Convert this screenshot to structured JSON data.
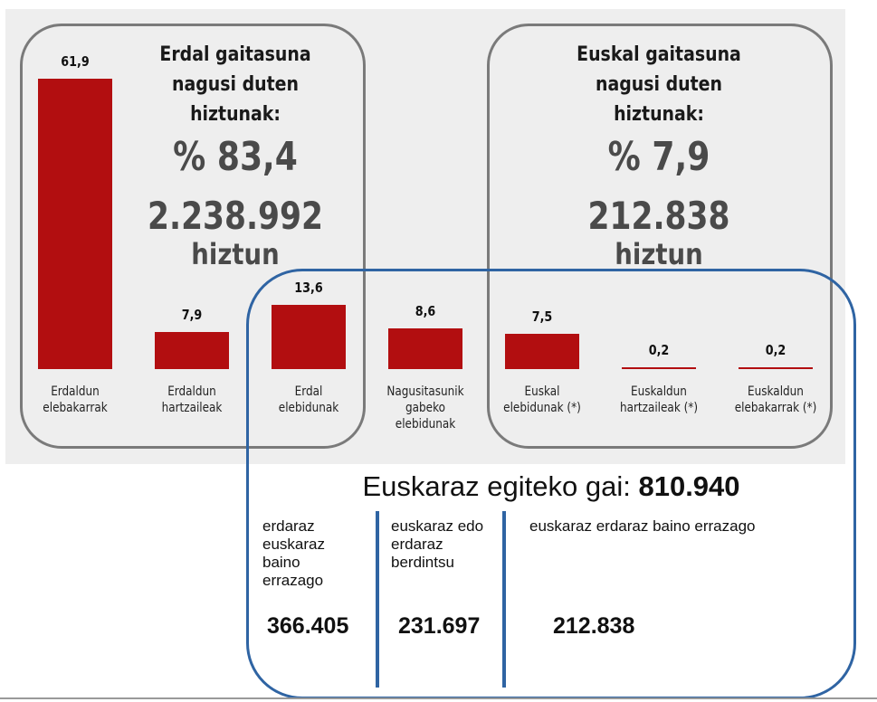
{
  "chart_data": {
    "type": "bar",
    "categories": [
      "Erdaldun\nelebakarrak",
      "Erdaldun\nhartzaileak",
      "Erdal\nelebidunak",
      "Nagusitasunik\ngabeko\nelebidunak",
      "Euskal\nelebidunak (*)",
      "Euskaldun\nhartzaileak (*)",
      "Euskaldun\nelebakarrak (*)"
    ],
    "values": [
      61.9,
      7.9,
      13.6,
      8.6,
      7.5,
      0.2,
      0.2
    ],
    "value_labels": [
      "61,9",
      "7,9",
      "13,6",
      "8,6",
      "7,5",
      "0,2",
      "0,2"
    ],
    "ylim": [
      0,
      61.9
    ],
    "grid": false,
    "bar_color": "#b20e10"
  },
  "groups": {
    "erdal": {
      "title_lines": [
        "Erdal gaitasuna",
        "nagusi duten",
        "hiztunak:"
      ],
      "percent": "% 83,4",
      "count": "2.238.992",
      "unit": "hiztun"
    },
    "euskal": {
      "title_lines": [
        "Euskal gaitasuna",
        "nagusi duten",
        "hiztunak:"
      ],
      "percent": "% 7,9",
      "count": "212.838",
      "unit": "hiztun"
    }
  },
  "summary": {
    "title_prefix": "Euskaraz egiteko gai: ",
    "title_value": "810.940",
    "columns": [
      {
        "label_lines": [
          "erdaraz",
          "euskaraz",
          "baino",
          "errazago"
        ],
        "value": "366.405"
      },
      {
        "label_lines": [
          "euskaraz edo",
          "erdaraz",
          "berdintsu"
        ],
        "value": "231.697"
      },
      {
        "label_lines": [
          "euskaraz erdaraz baino errazago"
        ],
        "value": "212.838"
      }
    ]
  },
  "colors": {
    "bar": "#b20e10",
    "box_border": "#7a7a7a",
    "blue_frame": "#2f64a3",
    "panel_bg": "#eeeeee"
  }
}
